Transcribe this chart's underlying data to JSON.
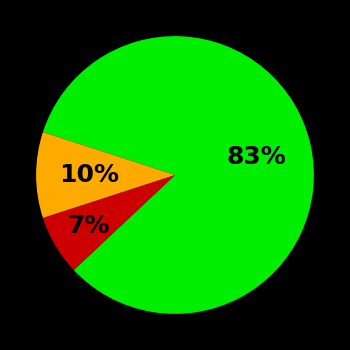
{
  "slices": [
    83,
    7,
    10
  ],
  "labels": [
    "83%",
    "7%",
    "10%"
  ],
  "colors": [
    "#00ee00",
    "#cc0000",
    "#ffaa00"
  ],
  "background_color": "#000000",
  "label_fontsize": 18,
  "label_fontweight": "bold",
  "startangle": 162,
  "figsize": [
    3.5,
    3.5
  ],
  "dpi": 100,
  "label_radii": [
    0.6,
    0.72,
    0.62
  ]
}
